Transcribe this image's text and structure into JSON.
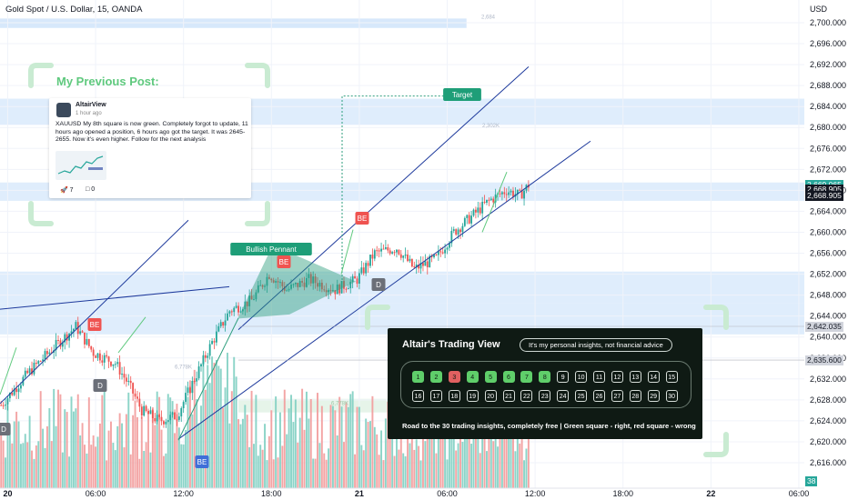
{
  "title": "Gold Spot / U.S. Dollar, 15, OANDA",
  "colors": {
    "up": "#26a69a",
    "down": "#ef5350",
    "up_vol": "#7fcfc2",
    "down_vol": "#f29b9b",
    "trend": "#1e3a9c",
    "pattern": "#2e9e7d",
    "zone": "#d7e8fb",
    "green_zone": "#e6f4e9"
  },
  "chart_data": {
    "type": "candlestick",
    "symbol": "XAUUSD",
    "currency_label": "USD",
    "y_axis": {
      "min": 2617,
      "max": 2701,
      "ticks": [
        2700,
        2696,
        2692,
        2688,
        2684,
        2680,
        2676,
        2672,
        2668,
        2664,
        2660,
        2656,
        2652,
        2648,
        2644,
        2640,
        2636,
        2632,
        2628,
        2624,
        2620,
        2616
      ],
      "tick_labels": [
        "2,700.000",
        "2,696.000",
        "2,692.000",
        "2,688.000",
        "2,684.000",
        "2,680.000",
        "2,676.000",
        "2,672.000",
        "2,668.000",
        "2,664.000",
        "2,660.000",
        "2,656.000",
        "2,652.000",
        "2,648.000",
        "2,644.000",
        "2,640.000",
        "2,636.000",
        "2,632.000",
        "2,628.000",
        "2,624.000",
        "2,620.000",
        "2,616.000"
      ]
    },
    "x_axis": {
      "labels": [
        "20",
        "06:00",
        "12:00",
        "18:00",
        "21",
        "06:00",
        "12:00",
        "18:00",
        "22",
        "06:00"
      ],
      "bar_index": [
        3,
        43,
        83,
        123,
        163,
        203,
        243,
        283,
        323,
        363
      ]
    },
    "bars_visible": 366,
    "last_bar_index": 240,
    "price_labels": [
      {
        "text": "2,669.065",
        "sub": "14:54",
        "price": 2669.065,
        "color": "#26a69a"
      },
      {
        "text": "2,668.905",
        "price": 2668.3,
        "color": "#131722"
      },
      {
        "text": "2,668.905",
        "price": 2667.1,
        "color": "#131722"
      },
      {
        "text": "2,642.035",
        "price": 2642.035,
        "color": "#d1d4dc"
      },
      {
        "text": "2,635.600",
        "price": 2635.6,
        "color": "#d1d4dc"
      }
    ],
    "volume_badge": "38",
    "annotations": [
      {
        "text": "Target",
        "kind": "label"
      },
      {
        "text": "Bullish Pennant",
        "kind": "label"
      },
      {
        "text": "BE",
        "kind": "red-flag"
      },
      {
        "text": "BE",
        "kind": "red-flag"
      },
      {
        "text": "BE",
        "kind": "red-flag"
      },
      {
        "text": "BE",
        "kind": "blue-flag"
      },
      {
        "text": "D",
        "kind": "gray-flag"
      },
      {
        "text": "D",
        "kind": "gray-flag"
      },
      {
        "text": "D",
        "kind": "gray-flag"
      }
    ],
    "faded_labels": [
      "2,684",
      "2,302K",
      "6,778K"
    ]
  },
  "post": {
    "heading": "My Previous Post:",
    "author": "AltairView",
    "time": "1 hour ago",
    "body": "XAUUSD   My 8th square is now green. Completely forgot to update, 11 hours ago opened a position, 6 hours ago got the target. It was 2645-2655. Now it's even higher. Follow for the next analysis",
    "likes": "7",
    "comments": "0"
  },
  "panel": {
    "title": "Altair's Trading View",
    "note": "It's my personal insights, not financial advice",
    "squares": [
      {
        "n": "1",
        "state": "green"
      },
      {
        "n": "2",
        "state": "green"
      },
      {
        "n": "3",
        "state": "red"
      },
      {
        "n": "4",
        "state": "green"
      },
      {
        "n": "5",
        "state": "green"
      },
      {
        "n": "6",
        "state": "green"
      },
      {
        "n": "7",
        "state": "green"
      },
      {
        "n": "8",
        "state": "green"
      },
      {
        "n": "9",
        "state": "empty"
      },
      {
        "n": "10",
        "state": "empty"
      },
      {
        "n": "11",
        "state": "empty"
      },
      {
        "n": "12",
        "state": "empty"
      },
      {
        "n": "13",
        "state": "empty"
      },
      {
        "n": "14",
        "state": "empty"
      },
      {
        "n": "15",
        "state": "empty"
      },
      {
        "n": "16",
        "state": "empty"
      },
      {
        "n": "17",
        "state": "empty"
      },
      {
        "n": "18",
        "state": "empty"
      },
      {
        "n": "19",
        "state": "empty"
      },
      {
        "n": "20",
        "state": "empty"
      },
      {
        "n": "21",
        "state": "empty"
      },
      {
        "n": "22",
        "state": "empty"
      },
      {
        "n": "23",
        "state": "empty"
      },
      {
        "n": "24",
        "state": "empty"
      },
      {
        "n": "25",
        "state": "empty"
      },
      {
        "n": "26",
        "state": "empty"
      },
      {
        "n": "27",
        "state": "empty"
      },
      {
        "n": "28",
        "state": "empty"
      },
      {
        "n": "29",
        "state": "empty"
      },
      {
        "n": "30",
        "state": "empty"
      }
    ],
    "footer": "Road to the 30 trading insights, completely free | Green square - right, red square - wrong"
  }
}
